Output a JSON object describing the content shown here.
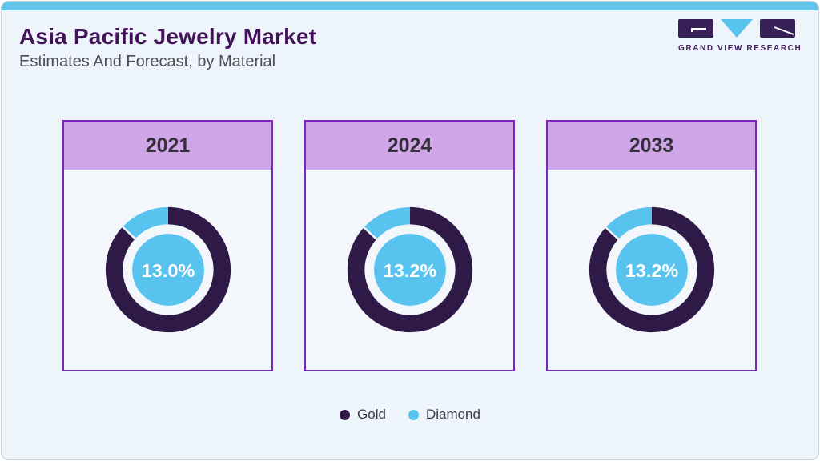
{
  "header": {
    "title": "Asia Pacific Jewelry Market",
    "subtitle": "Estimates And Forecast, by Material"
  },
  "logo": {
    "wordmark": "GRAND VIEW RESEARCH"
  },
  "legend": {
    "items": [
      {
        "label": "Gold",
        "color": "#2f1a47"
      },
      {
        "label": "Diamond",
        "color": "#57c3ee"
      }
    ]
  },
  "colors": {
    "page_bg": "#eef5fa",
    "card_bg": "#f3f7fb",
    "topbar": "#63c3e9",
    "title_text": "#421358",
    "subtitle_text": "#4d4d55",
    "card_border": "#7d26bb",
    "header_fill": "#cfa7e9",
    "year_text": "#353139",
    "gold": "#2f1a47",
    "diamond": "#57c3ee",
    "legend_text": "#3a3a42",
    "logo_purple": "#45215d"
  },
  "chart_data": [
    {
      "type": "pie",
      "title": "2021",
      "center_label": "13.0%",
      "legend_position": "bottom",
      "slices": [
        {
          "label": "Gold",
          "value": 87.0
        },
        {
          "label": "Diamond",
          "value": 13.0
        }
      ]
    },
    {
      "type": "pie",
      "title": "2024",
      "center_label": "13.2%",
      "legend_position": "bottom",
      "slices": [
        {
          "label": "Gold",
          "value": 86.8
        },
        {
          "label": "Diamond",
          "value": 13.2
        }
      ]
    },
    {
      "type": "pie",
      "title": "2033",
      "center_label": "13.2%",
      "legend_position": "bottom",
      "slices": [
        {
          "label": "Gold",
          "value": 86.8
        },
        {
          "label": "Diamond",
          "value": 13.2
        }
      ]
    }
  ]
}
